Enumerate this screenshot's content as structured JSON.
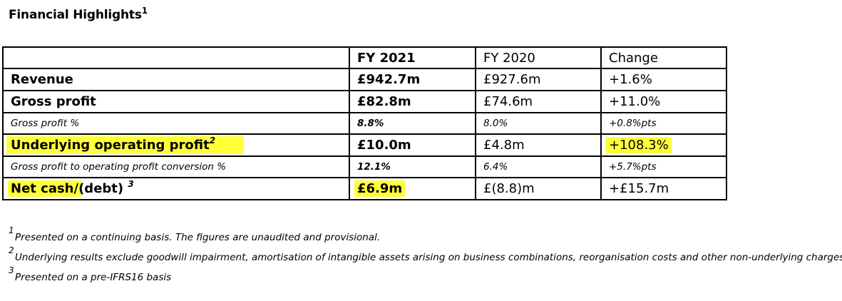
{
  "title": {
    "text": "Financial Highlights",
    "sup": "1"
  },
  "table": {
    "headers": [
      "",
      "FY  2021",
      "FY 2020",
      "Change"
    ],
    "rows": [
      {
        "label": "Revenue",
        "sup": "",
        "fy2021": "£942.7m",
        "fy2020": "£927.6m",
        "change": "+1.6%"
      },
      {
        "label": "Gross profit",
        "sup": "",
        "fy2021": "£82.8m",
        "fy2020": "£74.6m",
        "change": "+11.0%"
      },
      {
        "label": "Gross profit %",
        "sup": "",
        "fy2021": "8.8%",
        "fy2020": "8.0%",
        "change": "+0.8%pts"
      },
      {
        "label": "Underlying operating profit",
        "sup": "2",
        "fy2021": "£10.0m",
        "fy2020": "£4.8m",
        "change": "+108.3%"
      },
      {
        "label": "Gross profit to operating profit conversion %",
        "sup": "",
        "fy2021": "12.1%",
        "fy2020": "6.4%",
        "change": "+5.7%pts"
      },
      {
        "label_a": "Net cash",
        "label_b": "/",
        "label_c": "(debt)",
        "sup": "3",
        "fy2021": "£6.9m",
        "fy2020": "£(8.8)m",
        "change": "+£15.7m"
      }
    ]
  },
  "footnotes": [
    {
      "num": "1",
      "text": "Presented on a continuing basis. The figures are unaudited and provisional."
    },
    {
      "num": "2",
      "text": "Underlying results exclude goodwill impairment, amortisation of intangible assets arising on business combinations, reorganisation costs and other non-underlying charges"
    },
    {
      "num": "3",
      "text": "Presented on a pre-IFRS16 basis"
    }
  ],
  "highlight_color": "#ffff3a"
}
